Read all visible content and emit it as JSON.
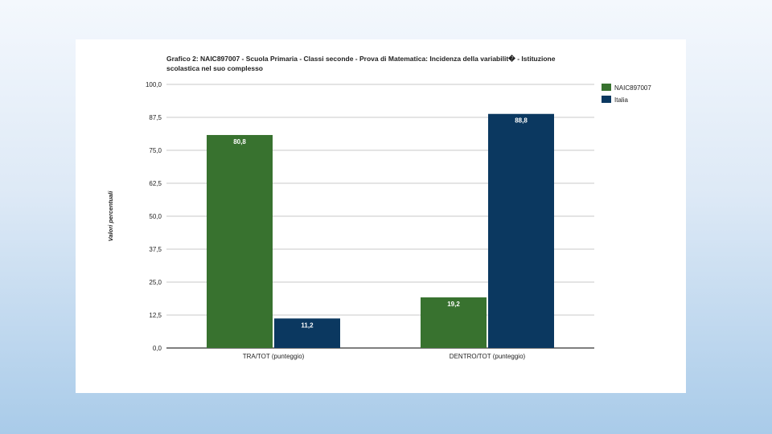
{
  "chart_data": {
    "type": "bar",
    "title": "Grafico 2: NAIC897007 - Scuola Primaria - Classi seconde - Prova di Matematica: Incidenza della variabilit� - Istituzione scolastica nel suo complesso",
    "xlabel": "",
    "ylabel": "Valori percentuali",
    "categories": [
      "TRA/TOT (punteggio)",
      "DENTRO/TOT (punteggio)"
    ],
    "series": [
      {
        "name": "NAIC897007",
        "color": "#38722f",
        "values": [
          80.8,
          19.2
        ],
        "labels": [
          "80,8",
          "19,2"
        ]
      },
      {
        "name": "Italia",
        "color": "#0b3860",
        "values": [
          11.2,
          88.8
        ],
        "labels": [
          "11,2",
          "88,8"
        ]
      }
    ],
    "ylim": [
      0,
      100
    ],
    "yticks": [
      0,
      12.5,
      25,
      37.5,
      50,
      62.5,
      75,
      87.5,
      100
    ],
    "ytick_labels": [
      "0,0",
      "12,5",
      "25,0",
      "37,5",
      "50,0",
      "62,5",
      "75,0",
      "87,5",
      "100,0"
    ],
    "grid": true,
    "legend_position": "top-right"
  }
}
